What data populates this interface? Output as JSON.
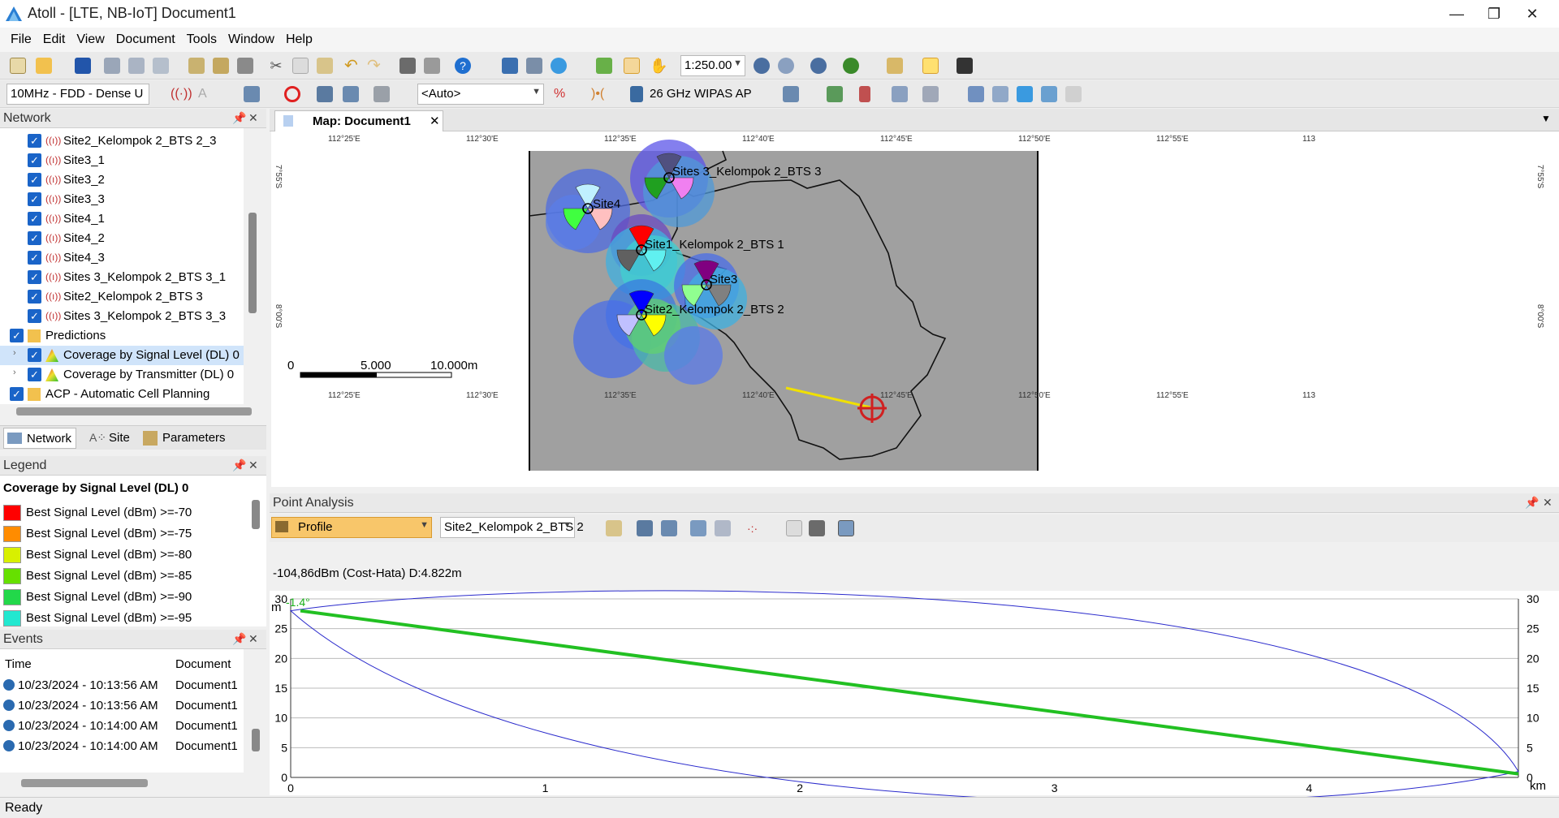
{
  "window": {
    "title": "Atoll - [LTE, NB-IoT] Document1",
    "minimize": "—",
    "restore": "❐",
    "close": "✕"
  },
  "menu": [
    "File",
    "Edit",
    "View",
    "Document",
    "Tools",
    "Window",
    "Help"
  ],
  "toolbar1": {
    "zoom_value": "1:250.00"
  },
  "toolbar2": {
    "carrier": "10MHz - FDD - Dense U",
    "auto": "<Auto>",
    "equipment": "26 GHz WIPAS AP"
  },
  "network_panel": {
    "title": "Network",
    "items": [
      {
        "label": "Site2_Kelompok 2_BTS 2_3",
        "type": "tx"
      },
      {
        "label": "Site3_1",
        "type": "tx"
      },
      {
        "label": "Site3_2",
        "type": "tx"
      },
      {
        "label": "Site3_3",
        "type": "tx"
      },
      {
        "label": "Site4_1",
        "type": "tx"
      },
      {
        "label": "Site4_2",
        "type": "tx"
      },
      {
        "label": "Site4_3",
        "type": "tx"
      },
      {
        "label": "Sites 3_Kelompok 2_BTS 3_1",
        "type": "tx"
      },
      {
        "label": "Site2_Kelompok 2_BTS 3",
        "type": "tx"
      },
      {
        "label": "Sites 3_Kelompok 2_BTS 3_3",
        "type": "tx"
      },
      {
        "label": "Predictions",
        "type": "folder"
      },
      {
        "label": "Coverage by Signal Level (DL) 0",
        "type": "pred",
        "selected": true
      },
      {
        "label": "Coverage by Transmitter (DL) 0",
        "type": "pred"
      },
      {
        "label": "ACP - Automatic Cell Planning",
        "type": "folder"
      }
    ],
    "tabs": [
      "Network",
      "Site",
      "Parameters"
    ]
  },
  "legend_panel": {
    "title": "Legend",
    "heading": "Coverage by Signal Level (DL) 0",
    "entries": [
      {
        "label": "Best Signal Level (dBm) >=-70",
        "color": "#ff0000"
      },
      {
        "label": "Best Signal Level (dBm) >=-75",
        "color": "#ff8c00"
      },
      {
        "label": "Best Signal Level (dBm) >=-80",
        "color": "#d8f000"
      },
      {
        "label": "Best Signal Level (dBm) >=-85",
        "color": "#66e000"
      },
      {
        "label": "Best Signal Level (dBm) >=-90",
        "color": "#22d84a"
      },
      {
        "label": "Best Signal Level (dBm) >=-95",
        "color": "#22e8d0"
      }
    ]
  },
  "events_panel": {
    "title": "Events",
    "columns": [
      "Time",
      "Document"
    ],
    "rows": [
      [
        "10/23/2024 - 10:13:56 AM",
        "Document1"
      ],
      [
        "10/23/2024 - 10:13:56 AM",
        "Document1"
      ],
      [
        "10/23/2024 - 10:14:00 AM",
        "Document1"
      ],
      [
        "10/23/2024 - 10:14:00 AM",
        "Document1"
      ]
    ]
  },
  "map": {
    "tab_title": "Map: Document1",
    "lon_labels": [
      "112°25'E",
      "112°30'E",
      "112°35'E",
      "112°40'E",
      "112°45'E",
      "112°50'E",
      "112°55'E",
      "113"
    ],
    "lat_labels": [
      "7°55'S",
      "8°00'S"
    ],
    "sites": [
      {
        "label": "Sites 3_Kelompok 2_BTS 3"
      },
      {
        "label": "Site4"
      },
      {
        "label": "Site1_Kelompok 2_BTS 1"
      },
      {
        "label": "Site3"
      },
      {
        "label": "Site2_Kelompok 2_BTS 2"
      }
    ],
    "scale": {
      "zero": "0",
      "mid": "5.000",
      "end": "10.000m"
    }
  },
  "point_analysis": {
    "title": "Point Analysis",
    "view": "Profile",
    "transmitter": "Site2_Kelompok 2_BTS 2",
    "result": "-104,86dBm (Cost-Hata) D:4.822m",
    "angle": "-1.4°",
    "y_unit": "m",
    "x_unit": "km",
    "y_ticks": [
      "30",
      "25",
      "20",
      "15",
      "10",
      "5",
      "0"
    ],
    "x_ticks": [
      "0",
      "1",
      "2",
      "3",
      "4"
    ]
  },
  "status": {
    "text": "Ready"
  }
}
